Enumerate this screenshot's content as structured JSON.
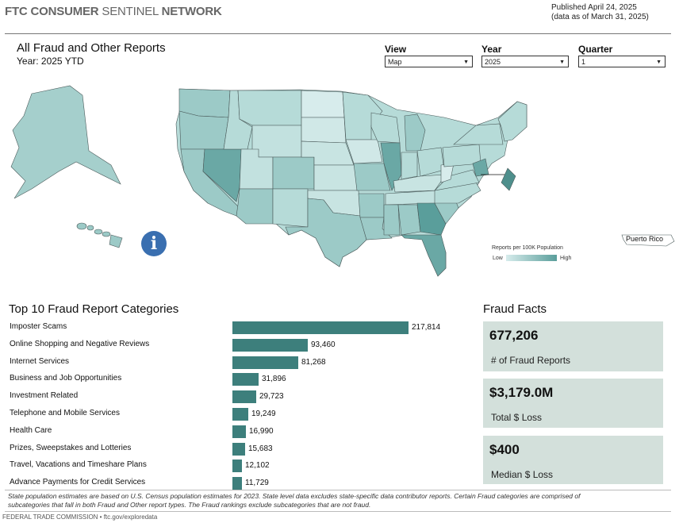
{
  "header": {
    "brand_bold": "FTC CONSUMER ",
    "brand_light": "SENTINEL ",
    "brand_bold2": "NETWORK",
    "published": "Published April 24, 2025",
    "data_as_of": "(data as of March 31, 2025)"
  },
  "report": {
    "title": "All Fraud and Other Reports",
    "subtitle": "Year: 2025 YTD"
  },
  "filters": {
    "view": {
      "label": "View",
      "value": "Map"
    },
    "year": {
      "label": "Year",
      "value": "2025"
    },
    "quarter": {
      "label": "Quarter",
      "value": "1"
    }
  },
  "map": {
    "legend_title": "Reports per 100K Population",
    "legend_low": "Low",
    "legend_high": "High",
    "puerto_rico": "Puerto Rico",
    "info_glyph": "i",
    "colors": {
      "light": "#d7ecec",
      "mid": "#9ccac7",
      "dark": "#5a9e9b",
      "border": "#4a5a5a"
    }
  },
  "top10": {
    "title": "Top 10 Fraud Report Categories",
    "bar_color": "#3d7f7c",
    "items": [
      {
        "label": "Imposter Scams",
        "value": 217814,
        "display": "217,814"
      },
      {
        "label": "Online Shopping and Negative Reviews",
        "value": 93460,
        "display": "93,460"
      },
      {
        "label": "Internet Services",
        "value": 81268,
        "display": "81,268"
      },
      {
        "label": "Business and Job Opportunities",
        "value": 31896,
        "display": "31,896"
      },
      {
        "label": "Investment Related",
        "value": 29723,
        "display": "29,723"
      },
      {
        "label": "Telephone and Mobile Services",
        "value": 19249,
        "display": "19,249"
      },
      {
        "label": "Health Care",
        "value": 16990,
        "display": "16,990"
      },
      {
        "label": "Prizes, Sweepstakes and Lotteries",
        "value": 15683,
        "display": "15,683"
      },
      {
        "label": "Travel, Vacations and Timeshare Plans",
        "value": 12102,
        "display": "12,102"
      },
      {
        "label": "Advance Payments for Credit Services",
        "value": 11729,
        "display": "11,729"
      }
    ]
  },
  "facts": {
    "title": "Fraud Facts",
    "box_color": "#d3e0db",
    "items": [
      {
        "value": "677,206",
        "label": "# of Fraud Reports"
      },
      {
        "value": "$3,179.0M",
        "label": "Total $ Loss"
      },
      {
        "value": "$400",
        "label": "Median $ Loss"
      }
    ]
  },
  "footer": {
    "note": "State population estimates are based on U.S. Census population estimates for 2023. State level data excludes state-specific data contributor reports. Certain Fraud categories are comprised of subcategories that fall in both Fraud and Other report types. The Fraud rankings exclude subcategories that are not fraud.",
    "credit": "FEDERAL TRADE COMMISSION • ftc.gov/exploredata"
  }
}
